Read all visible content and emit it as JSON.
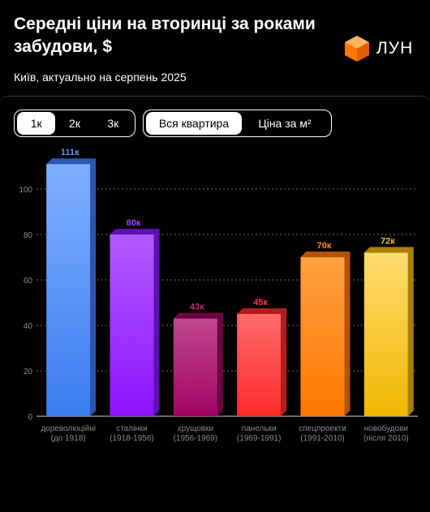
{
  "header": {
    "title": "Середні ціни на вторинці за роками забудови, $",
    "subtitle": "Київ, актуально на серпень 2025",
    "logo_text": "ЛУН",
    "logo_icon": "cube-icon"
  },
  "room_tabs": [
    {
      "label": "1к",
      "active": true
    },
    {
      "label": "2к",
      "active": false
    },
    {
      "label": "3к",
      "active": false
    }
  ],
  "price_tabs": [
    {
      "label": "Вся квартира",
      "active": true
    },
    {
      "label": "Ціна за м²",
      "active": false
    }
  ],
  "chart_data": {
    "type": "bar",
    "title": "",
    "xlabel": "",
    "ylabel": "",
    "ylim": [
      0,
      110
    ],
    "yticks": [
      0,
      20,
      40,
      60,
      80,
      100
    ],
    "grid": true,
    "categories": [
      [
        "дореволюційні",
        "(до 1918)"
      ],
      [
        "сталінки",
        "(1918-1956)"
      ],
      [
        "хрущовки",
        "(1956-1969)"
      ],
      [
        "панельки",
        "(1969-1991)"
      ],
      [
        "спецпроекти",
        "(1991-2010)"
      ],
      [
        "новобудови",
        "(після 2010)"
      ]
    ],
    "values": [
      111,
      80,
      43,
      45,
      70,
      72
    ],
    "value_labels": [
      "111к",
      "80к",
      "43к",
      "45к",
      "70к",
      "72к"
    ],
    "colors": [
      {
        "top": "#7fb0ff",
        "bottom": "#3b7cf0",
        "side": "#2c56b0",
        "label": "#5b8ef5"
      },
      {
        "top": "#b25cff",
        "bottom": "#8b12ff",
        "side": "#5f0fb5",
        "label": "#a040ff"
      },
      {
        "top": "#c0478f",
        "bottom": "#a10463",
        "side": "#6e0444",
        "label": "#c0307a"
      },
      {
        "top": "#ff6a6a",
        "bottom": "#ff2a2a",
        "side": "#b51d1d",
        "label": "#ff3b3b"
      },
      {
        "top": "#ffa040",
        "bottom": "#ff7800",
        "side": "#b35400",
        "label": "#ff8a1a"
      },
      {
        "top": "#ffdb70",
        "bottom": "#f0b800",
        "side": "#a88000",
        "label": "#f5c020"
      }
    ]
  }
}
